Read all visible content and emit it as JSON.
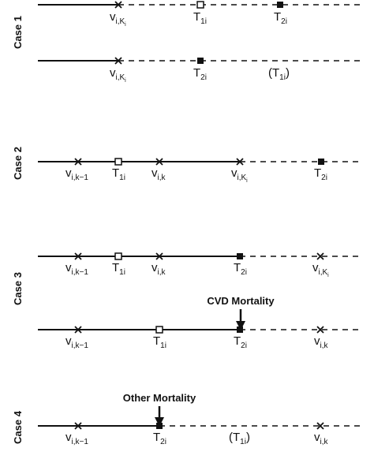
{
  "cases": [
    {
      "label": "Case 1"
    },
    {
      "label": "Case 2"
    },
    {
      "label": "Case 3"
    },
    {
      "label": "Case 4"
    }
  ],
  "annotations": {
    "cvd_mortality": "CVD Mortality",
    "other_mortality": "Other Mortality"
  },
  "symbols": {
    "v": "v",
    "T": "T",
    "sub_iKi_prefix": "i,K",
    "sub_iKi_suffix": "i",
    "sub_ik1": "i,k−1",
    "sub_ik": "i,k",
    "sub_1i": "1i",
    "sub_2i": "2i",
    "open_paren": "(",
    "close_paren": ")"
  }
}
